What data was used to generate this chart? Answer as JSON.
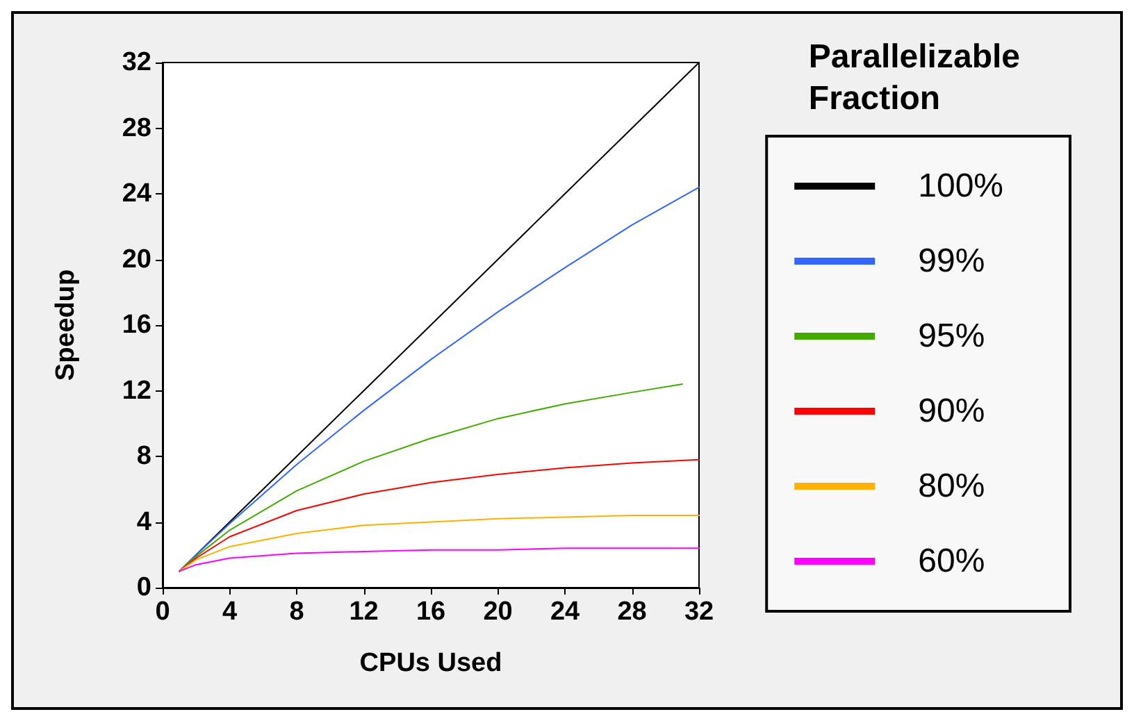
{
  "chart_data": {
    "type": "line",
    "xlabel": "CPUs Used",
    "ylabel": "Speedup",
    "legend_title": "Parallelizable Fraction",
    "legend": "right",
    "grid": false,
    "marker": "none",
    "line_style": "solid",
    "xlim": [
      0,
      32
    ],
    "xticks": [
      0,
      4,
      8,
      12,
      16,
      20,
      24,
      28,
      32
    ],
    "ylim": [
      0,
      32
    ],
    "yticks": [
      0,
      4,
      8,
      12,
      16,
      20,
      24,
      28,
      32
    ],
    "series": [
      {
        "name": "100%",
        "color": "#000000",
        "x": [
          1,
          2,
          4,
          8,
          12,
          16,
          20,
          24,
          28,
          32
        ],
        "values": [
          1,
          2,
          4,
          8,
          12,
          16,
          20,
          24,
          28,
          32
        ]
      },
      {
        "name": "99%",
        "color": "#3366ff",
        "x": [
          1,
          2,
          4,
          8,
          12,
          16,
          20,
          24,
          28,
          32
        ],
        "values": [
          1,
          2,
          3.9,
          7.5,
          10.8,
          13.9,
          16.8,
          19.5,
          22.1,
          24.4
        ]
      },
      {
        "name": "95%",
        "color": "#44aa00",
        "x": [
          1,
          2,
          4,
          8,
          12,
          16,
          20,
          24,
          28,
          31
        ],
        "values": [
          1,
          1.9,
          3.5,
          5.9,
          7.7,
          9.1,
          10.3,
          11.2,
          11.9,
          12.4
        ]
      },
      {
        "name": "90%",
        "color": "#ff0000",
        "x": [
          1,
          2,
          4,
          8,
          12,
          16,
          20,
          24,
          28,
          32
        ],
        "values": [
          1,
          1.8,
          3.1,
          4.7,
          5.7,
          6.4,
          6.9,
          7.3,
          7.6,
          7.8
        ]
      },
      {
        "name": "80%",
        "color": "#ffb000",
        "x": [
          1,
          2,
          4,
          8,
          12,
          16,
          20,
          24,
          28,
          32
        ],
        "values": [
          1,
          1.7,
          2.5,
          3.3,
          3.8,
          4,
          4.2,
          4.3,
          4.4,
          4.4
        ]
      },
      {
        "name": "60%",
        "color": "#ff00ff",
        "x": [
          1,
          2,
          4,
          8,
          12,
          16,
          20,
          24,
          28,
          32
        ],
        "values": [
          1,
          1.4,
          1.8,
          2.1,
          2.2,
          2.3,
          2.3,
          2.4,
          2.4,
          2.4
        ]
      }
    ]
  }
}
